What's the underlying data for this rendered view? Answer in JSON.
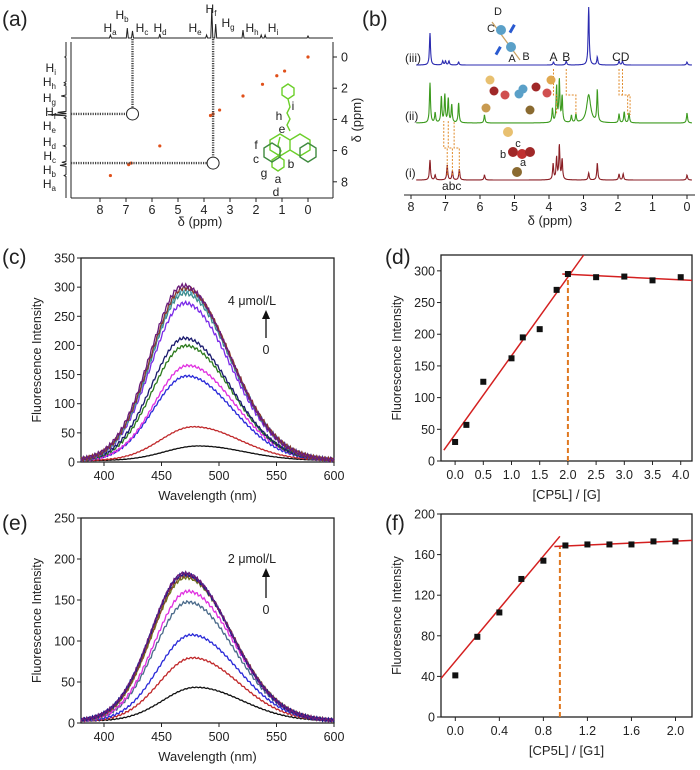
{
  "chart_data": [
    {
      "panel_label": "(a)",
      "type": "heatmap",
      "subtype": "2D NOESY NMR",
      "xlabel": "δ (ppm)",
      "ylabel": "δ (ppm)",
      "xlim": [
        9.2,
        -1.0
      ],
      "ylim": [
        -1.1,
        9.1
      ],
      "x_ticks": [
        "8",
        "7",
        "6",
        "5",
        "4",
        "3",
        "2",
        "1",
        "0"
      ],
      "y_ticks": [
        "0",
        "2",
        "4",
        "6",
        "8"
      ],
      "proton_labels": [
        {
          "base": "H",
          "sub": "a",
          "ppm": 7.6
        },
        {
          "base": "H",
          "sub": "b",
          "ppm": 6.95
        },
        {
          "base": "H",
          "sub": "c",
          "ppm": 6.75
        },
        {
          "base": "H",
          "sub": "d",
          "ppm": 5.7
        },
        {
          "base": "H",
          "sub": "e",
          "ppm": 3.9
        },
        {
          "base": "H",
          "sub": "f",
          "ppm": 3.7
        },
        {
          "base": "H",
          "sub": "g",
          "ppm": 3.55
        },
        {
          "base": "H",
          "sub": "h",
          "ppm": 1.8
        },
        {
          "base": "H",
          "sub": "i",
          "ppm": 1.65
        }
      ],
      "cross_peaks": [
        {
          "x_ppm": 6.75,
          "y_ppm": 3.65
        },
        {
          "x_ppm": 3.65,
          "y_ppm": 6.8
        }
      ],
      "diagonal_peaks_ppm": [
        7.6,
        6.9,
        6.8,
        5.7,
        3.75,
        3.65,
        3.4,
        2.5,
        1.75,
        1.2,
        0.9,
        0.0
      ],
      "structure_labels": [
        "i",
        "h",
        "e",
        "f",
        "c",
        "b",
        "g",
        "a",
        "d"
      ],
      "colors": {
        "peak": "#e0501a",
        "structure": "#6ccf2a",
        "structure_dark": "#3f8a3f"
      }
    },
    {
      "panel_label": "(b)",
      "type": "line",
      "subtype": "1H NMR stacked spectra",
      "xlabel": "δ (ppm)",
      "xlim": [
        8.3,
        -0.2
      ],
      "x_ticks": [
        "8",
        "7",
        "6",
        "5",
        "4",
        "3",
        "2",
        "1",
        "0"
      ],
      "series": [
        {
          "name": "(iii)",
          "color": "#2b2bb0",
          "peaks": [
            [
              7.45,
              32
            ],
            [
              7.08,
              4
            ],
            [
              7.0,
              4
            ],
            [
              6.9,
              4
            ],
            [
              6.62,
              3
            ],
            [
              3.87,
              3
            ],
            [
              3.5,
              4
            ],
            [
              2.85,
              58
            ],
            [
              2.6,
              8
            ],
            [
              1.97,
              4
            ],
            [
              1.87,
              4
            ],
            [
              0.0,
              3
            ]
          ]
        },
        {
          "name": "(ii)",
          "color": "#3c9a1e",
          "peaks": [
            [
              7.45,
              40
            ],
            [
              7.3,
              10
            ],
            [
              7.12,
              26
            ],
            [
              7.02,
              28
            ],
            [
              6.92,
              24
            ],
            [
              6.82,
              18
            ],
            [
              6.62,
              20
            ],
            [
              5.87,
              8
            ],
            [
              3.9,
              14
            ],
            [
              3.78,
              36
            ],
            [
              3.7,
              42
            ],
            [
              3.62,
              26
            ],
            [
              3.35,
              7
            ],
            [
              3.22,
              8
            ],
            [
              2.85,
              28
            ],
            [
              2.6,
              32
            ],
            [
              1.97,
              9
            ],
            [
              1.82,
              11
            ],
            [
              1.68,
              10
            ],
            [
              0.0,
              10
            ]
          ]
        },
        {
          "name": "(i)",
          "color": "#8a1e24",
          "peaks": [
            [
              7.45,
              20
            ],
            [
              7.3,
              5
            ],
            [
              6.95,
              15
            ],
            [
              6.8,
              9
            ],
            [
              6.6,
              11
            ],
            [
              5.87,
              5
            ],
            [
              3.88,
              16
            ],
            [
              3.78,
              22
            ],
            [
              3.7,
              34
            ],
            [
              3.62,
              20
            ],
            [
              2.85,
              7
            ],
            [
              2.6,
              17
            ],
            [
              1.97,
              6
            ],
            [
              1.85,
              6
            ],
            [
              0.0,
              5
            ]
          ]
        }
      ],
      "peak_labels": {
        "iii": [
          "A",
          "B",
          "CD"
        ],
        "i": "abc"
      },
      "cartoon_labels": {
        "iii": [
          "D",
          "C",
          "A",
          "B"
        ],
        "i": [
          "c",
          "b",
          "a"
        ]
      },
      "connector_color": "#e08a2a"
    },
    {
      "panel_label": "(c)",
      "type": "line",
      "xlabel": "Wavelength (nm)",
      "ylabel": "Fluorescence Intensity",
      "xlim": [
        380,
        600
      ],
      "ylim": [
        0,
        350
      ],
      "x_ticks": [
        "400",
        "450",
        "500",
        "550",
        "600"
      ],
      "y_ticks": [
        "0",
        "50",
        "100",
        "150",
        "200",
        "250",
        "300",
        "350"
      ],
      "annotation": {
        "top": "4 μmol/L",
        "bottom": "0"
      },
      "series": [
        {
          "color": "#111111",
          "peak_wavelength": 482,
          "peak_intensity": 25
        },
        {
          "color": "#c0282a",
          "peak_wavelength": 478,
          "peak_intensity": 58
        },
        {
          "color": "#2a2ad8",
          "peak_wavelength": 472,
          "peak_intensity": 145
        },
        {
          "color": "#e030e0",
          "peak_wavelength": 473,
          "peak_intensity": 163
        },
        {
          "color": "#2c7a1c",
          "peak_wavelength": 471,
          "peak_intensity": 197
        },
        {
          "color": "#1a1a6e",
          "peak_wavelength": 470,
          "peak_intensity": 210
        },
        {
          "color": "#7a2ae8",
          "peak_wavelength": 470,
          "peak_intensity": 270
        },
        {
          "color": "#3a8a8a",
          "peak_wavelength": 470,
          "peak_intensity": 287
        },
        {
          "color": "#4aa0b0",
          "peak_wavelength": 470,
          "peak_intensity": 292
        },
        {
          "color": "#8a3a2a",
          "peak_wavelength": 470,
          "peak_intensity": 296
        },
        {
          "color": "#6a1a7a",
          "peak_wavelength": 469,
          "peak_intensity": 300
        }
      ]
    },
    {
      "panel_label": "(d)",
      "type": "scatter",
      "xlabel": "[CP5L] / [G]",
      "ylabel": "Fluorescence Intensity",
      "xlim": [
        -0.25,
        4.2
      ],
      "ylim": [
        0,
        325
      ],
      "x_ticks": [
        "0.0",
        "0.5",
        "1.0",
        "1.5",
        "2.0",
        "2.5",
        "3.0",
        "3.5",
        "4.0"
      ],
      "y_ticks": [
        "0",
        "50",
        "100",
        "150",
        "200",
        "250",
        "300"
      ],
      "x": [
        0.0,
        0.2,
        0.5,
        1.0,
        1.2,
        1.5,
        1.8,
        2.0,
        2.5,
        3.0,
        3.5,
        4.0
      ],
      "y": [
        30,
        57,
        125,
        162,
        195,
        208,
        270,
        295,
        290,
        291,
        285,
        290
      ],
      "fit_lines": [
        [
          [
            -0.2,
            17
          ],
          [
            2.28,
            325
          ]
        ],
        [
          [
            1.9,
            295
          ],
          [
            4.2,
            285
          ]
        ]
      ],
      "breakpoint_x": 2.0,
      "colors": {
        "points": "#111111",
        "fit": "#d42020",
        "breakpoint": "#e07820"
      }
    },
    {
      "panel_label": "(e)",
      "type": "line",
      "xlabel": "Wavelength (nm)",
      "ylabel": "Fluorescence Intensity",
      "xlim": [
        380,
        600
      ],
      "ylim": [
        0,
        250
      ],
      "x_ticks": [
        "400",
        "450",
        "500",
        "550",
        "600"
      ],
      "y_ticks": [
        "0",
        "50",
        "100",
        "150",
        "200",
        "250"
      ],
      "annotation": {
        "top": "2 μmol/L",
        "bottom": "0"
      },
      "series": [
        {
          "color": "#111111",
          "peak_wavelength": 480,
          "peak_intensity": 41
        },
        {
          "color": "#c0282a",
          "peak_wavelength": 477,
          "peak_intensity": 77
        },
        {
          "color": "#2a2ad8",
          "peak_wavelength": 476,
          "peak_intensity": 105
        },
        {
          "color": "#4a6a8a",
          "peak_wavelength": 473,
          "peak_intensity": 145
        },
        {
          "color": "#e030e0",
          "peak_wavelength": 473,
          "peak_intensity": 158
        },
        {
          "color": "#6a7a1a",
          "peak_wavelength": 471,
          "peak_intensity": 175
        },
        {
          "color": "#8a4a2a",
          "peak_wavelength": 471,
          "peak_intensity": 177
        },
        {
          "color": "#1a1a8e",
          "peak_wavelength": 470,
          "peak_intensity": 179
        },
        {
          "color": "#6a1a7a",
          "peak_wavelength": 470,
          "peak_intensity": 180
        }
      ]
    },
    {
      "panel_label": "(f)",
      "type": "scatter",
      "xlabel": "[CP5L] / [G1]",
      "ylabel": "Fluoresence Intensity",
      "xlim": [
        -0.13,
        2.15
      ],
      "ylim": [
        0,
        200
      ],
      "x_ticks": [
        "0.0",
        "0.4",
        "0.8",
        "1.2",
        "1.6",
        "2.0"
      ],
      "y_ticks": [
        "0",
        "40",
        "80",
        "120",
        "160",
        "200"
      ],
      "x": [
        0.0,
        0.2,
        0.4,
        0.6,
        0.8,
        1.0,
        1.2,
        1.4,
        1.6,
        1.8,
        2.0
      ],
      "y": [
        41,
        79,
        103,
        136,
        154,
        169,
        170,
        170,
        170,
        173,
        173
      ],
      "fit_lines": [
        [
          [
            -0.13,
            38
          ],
          [
            0.95,
            178
          ]
        ],
        [
          [
            0.9,
            168
          ],
          [
            2.15,
            174
          ]
        ]
      ],
      "breakpoint_x": 0.95,
      "colors": {
        "points": "#111111",
        "fit": "#d42020",
        "breakpoint": "#e07820"
      }
    }
  ]
}
